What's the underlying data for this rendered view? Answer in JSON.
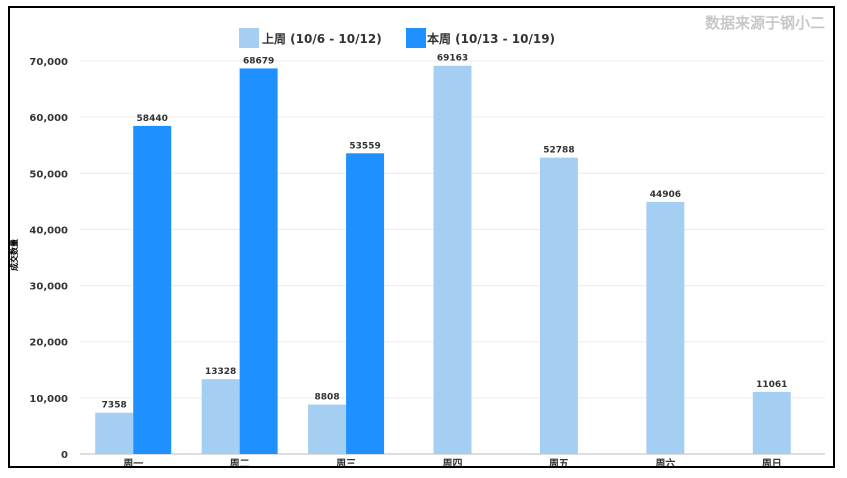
{
  "source_note": "数据来源于钢小二",
  "chart_data": {
    "type": "bar",
    "categories": [
      "周一",
      "周二",
      "周三",
      "周四",
      "周五",
      "周六",
      "周日"
    ],
    "series": [
      {
        "name": "上周 (10/6 - 10/12)",
        "color": "#a5cff2",
        "values": [
          7358,
          13328,
          8808,
          69163,
          52788,
          44906,
          11061
        ]
      },
      {
        "name": "本周 (10/13 - 10/19)",
        "color": "#1e90ff",
        "values": [
          58440,
          68679,
          53559,
          null,
          null,
          null,
          null
        ]
      }
    ],
    "ylabel": "成交数量",
    "xlabel": "",
    "ylim": [
      0,
      70000
    ],
    "yticks": [
      0,
      10000,
      20000,
      30000,
      40000,
      50000,
      60000,
      70000
    ],
    "ytick_labels": [
      "0",
      "10,000",
      "20,000",
      "30,000",
      "40,000",
      "50,000",
      "60,000",
      "70,000"
    ],
    "grid": true,
    "legend": "top-center",
    "data_labels": true
  }
}
